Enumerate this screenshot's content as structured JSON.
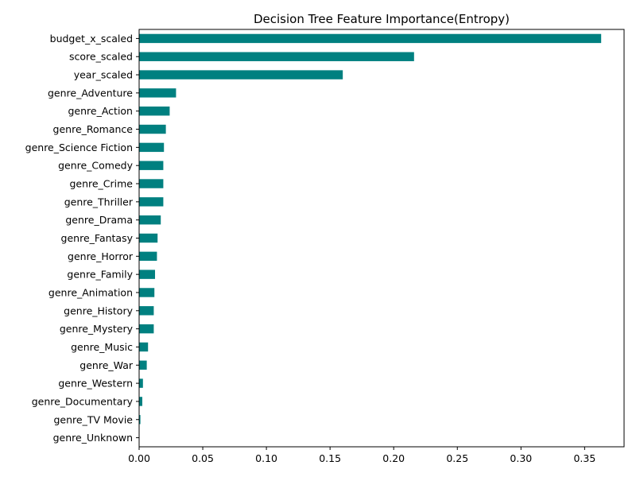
{
  "chart_data": {
    "type": "bar",
    "orientation": "horizontal",
    "title": "Decision Tree Feature Importance(Entropy)",
    "xlabel": "",
    "ylabel": "",
    "xlim": [
      0,
      0.381
    ],
    "xticks": [
      0.0,
      0.05,
      0.1,
      0.15,
      0.2,
      0.25,
      0.3,
      0.35
    ],
    "xtick_labels": [
      "0.00",
      "0.05",
      "0.10",
      "0.15",
      "0.20",
      "0.25",
      "0.30",
      "0.35"
    ],
    "grid": false,
    "bar_color": "#008080",
    "categories": [
      "budget_x_scaled",
      "score_scaled",
      "year_scaled",
      "genre_Adventure",
      "genre_Action",
      "genre_Romance",
      "genre_Science Fiction",
      "genre_Comedy",
      "genre_Crime",
      "genre_Thriller",
      "genre_Drama",
      "genre_Fantasy",
      "genre_Horror",
      "genre_Family",
      "genre_Animation",
      "genre_History",
      "genre_Mystery",
      "genre_Music",
      "genre_War",
      "genre_Western",
      "genre_Documentary",
      "genre_TV Movie",
      "genre_Unknown"
    ],
    "values": [
      0.363,
      0.216,
      0.16,
      0.029,
      0.024,
      0.021,
      0.0195,
      0.019,
      0.019,
      0.019,
      0.017,
      0.0145,
      0.014,
      0.0125,
      0.012,
      0.0115,
      0.0115,
      0.007,
      0.006,
      0.003,
      0.0025,
      0.001,
      0.0002
    ]
  }
}
